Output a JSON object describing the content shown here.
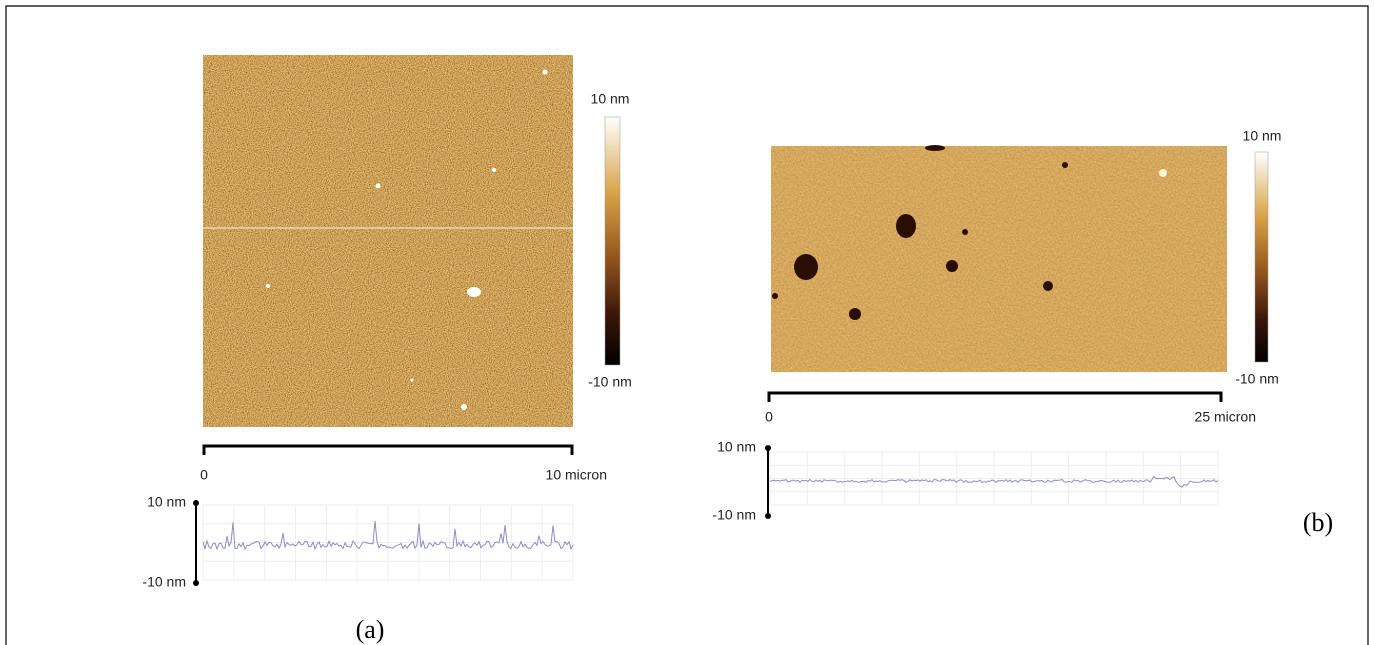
{
  "panel_a": {
    "color_scale": {
      "max": "10 nm",
      "min": "-10 nm"
    },
    "scale_bar": {
      "start": "0",
      "end": "10 micron"
    },
    "profile": {
      "max": "10 nm",
      "min": "-10 nm"
    },
    "caption": "(a)"
  },
  "panel_b": {
    "color_scale": {
      "max": "10 nm",
      "min": "-10 nm"
    },
    "scale_bar": {
      "start": "0",
      "end": "25 micron"
    },
    "profile": {
      "max": "10 nm",
      "min": "-10 nm"
    },
    "caption": "(b)"
  }
}
